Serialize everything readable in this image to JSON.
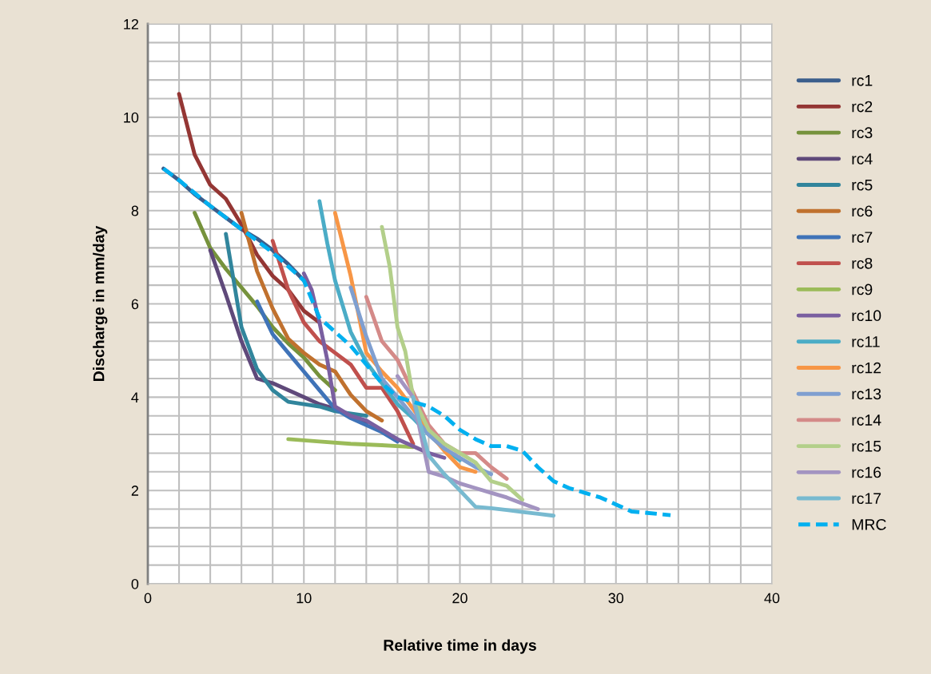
{
  "chart_data": {
    "type": "line",
    "xlabel": "Relative time in days",
    "ylabel": "Discharge in mm/day",
    "xlim": [
      0,
      40
    ],
    "ylim": [
      0,
      12
    ],
    "xticks": [
      0,
      {
        "value": 2,
        "label": null
      },
      {
        "value": 4,
        "label": null
      },
      {
        "value": 6,
        "label": null
      },
      {
        "value": 8,
        "label": null
      },
      10,
      {
        "value": 12,
        "label": null
      },
      {
        "value": 14,
        "label": null
      },
      {
        "value": 16,
        "label": null
      },
      {
        "value": 18,
        "label": null
      },
      20,
      {
        "value": 22,
        "label": null
      },
      {
        "value": 24,
        "label": null
      },
      {
        "value": 26,
        "label": null
      },
      {
        "value": 28,
        "label": null
      },
      30,
      {
        "value": 32,
        "label": null
      },
      {
        "value": 34,
        "label": null
      },
      {
        "value": 36,
        "label": null
      },
      {
        "value": 38,
        "label": null
      },
      40
    ],
    "yticks": [
      0,
      {
        "value": 0.4,
        "label": null
      },
      {
        "value": 0.8,
        "label": null
      },
      {
        "value": 1.2,
        "label": null
      },
      {
        "value": 1.6,
        "label": null
      },
      2,
      {
        "value": 2.4,
        "label": null
      },
      {
        "value": 2.8,
        "label": null
      },
      {
        "value": 3.2,
        "label": null
      },
      {
        "value": 3.6,
        "label": null
      },
      4,
      {
        "value": 4.4,
        "label": null
      },
      {
        "value": 4.8,
        "label": null
      },
      {
        "value": 5.2,
        "label": null
      },
      {
        "value": 5.6,
        "label": null
      },
      6,
      {
        "value": 6.4,
        "label": null
      },
      {
        "value": 6.8,
        "label": null
      },
      {
        "value": 7.2,
        "label": null
      },
      {
        "value": 7.6,
        "label": null
      },
      8,
      {
        "value": 8.4,
        "label": null
      },
      {
        "value": 8.8,
        "label": null
      },
      {
        "value": 9.2,
        "label": null
      },
      {
        "value": 9.6,
        "label": null
      },
      10,
      {
        "value": 10.4,
        "label": null
      },
      {
        "value": 10.8,
        "label": null
      },
      {
        "value": 11.2,
        "label": null
      },
      {
        "value": 11.6,
        "label": null
      },
      12
    ],
    "grid": true,
    "legend": "right",
    "marker": "none",
    "series": [
      {
        "name": "rc1",
        "color": "#3b5e8c",
        "x": [
          1,
          2,
          3,
          4,
          5,
          6,
          7,
          8,
          9,
          10
        ],
        "values": [
          8.9,
          8.65,
          8.35,
          8.1,
          7.85,
          7.6,
          7.4,
          7.15,
          6.85,
          6.5
        ]
      },
      {
        "name": "rc2",
        "color": "#943634",
        "x": [
          2,
          3,
          4,
          5,
          6,
          7,
          8,
          9,
          10,
          11
        ],
        "values": [
          10.5,
          9.2,
          8.55,
          8.25,
          7.7,
          7.05,
          6.6,
          6.3,
          5.85,
          5.6
        ]
      },
      {
        "name": "rc3",
        "color": "#76923c",
        "x": [
          3,
          4,
          5,
          6,
          7,
          8,
          9,
          10,
          11,
          12
        ],
        "values": [
          7.95,
          7.2,
          6.75,
          6.35,
          5.95,
          5.5,
          5.15,
          4.85,
          4.45,
          4.15
        ]
      },
      {
        "name": "rc4",
        "color": "#5f497a",
        "x": [
          4,
          5,
          6,
          7,
          8,
          9,
          10,
          11,
          12,
          13,
          14
        ],
        "values": [
          7.15,
          6.2,
          5.2,
          4.4,
          4.3,
          4.15,
          4.0,
          3.85,
          3.75,
          3.6,
          3.45
        ]
      },
      {
        "name": "rc5",
        "color": "#31859c",
        "x": [
          5,
          6,
          7,
          8,
          9,
          10,
          11,
          12,
          13,
          14
        ],
        "values": [
          7.5,
          5.5,
          4.6,
          4.15,
          3.9,
          3.85,
          3.8,
          3.7,
          3.65,
          3.6
        ]
      },
      {
        "name": "rc6",
        "color": "#c0712e",
        "x": [
          6,
          7,
          8,
          9,
          10,
          11,
          12,
          13,
          14,
          15
        ],
        "values": [
          7.95,
          6.7,
          5.9,
          5.25,
          4.95,
          4.7,
          4.55,
          4.05,
          3.7,
          3.5
        ]
      },
      {
        "name": "rc7",
        "color": "#3f73b8",
        "x": [
          7,
          8,
          9,
          10,
          11,
          12,
          13,
          14,
          15,
          16
        ],
        "values": [
          6.05,
          5.35,
          4.95,
          4.55,
          4.15,
          3.75,
          3.55,
          3.4,
          3.25,
          3.05
        ]
      },
      {
        "name": "rc8",
        "color": "#c0504d",
        "x": [
          8,
          9,
          10,
          11,
          12,
          13,
          14,
          15,
          16,
          17
        ],
        "values": [
          7.35,
          6.3,
          5.6,
          5.2,
          4.95,
          4.7,
          4.2,
          4.2,
          3.7,
          3.0
        ]
      },
      {
        "name": "rc9",
        "color": "#9bbb59",
        "x": [
          9,
          11,
          13,
          15,
          17
        ],
        "values": [
          3.1,
          3.05,
          3.0,
          2.97,
          2.93
        ]
      },
      {
        "name": "rc10",
        "color": "#7a5fa0",
        "x": [
          10,
          10.5,
          11,
          11.5,
          12,
          13,
          14,
          15,
          16,
          17,
          18,
          19
        ],
        "values": [
          6.65,
          6.3,
          5.6,
          4.8,
          3.8,
          3.6,
          3.5,
          3.3,
          3.1,
          2.95,
          2.8,
          2.7
        ]
      },
      {
        "name": "rc11",
        "color": "#4bacc6",
        "x": [
          11,
          11.5,
          12,
          13,
          14,
          15,
          16,
          17,
          18,
          19,
          20
        ],
        "values": [
          8.2,
          7.3,
          6.5,
          5.4,
          4.75,
          4.3,
          3.85,
          3.55,
          3.2,
          2.9,
          2.65
        ]
      },
      {
        "name": "rc12",
        "color": "#f79646",
        "x": [
          12,
          13,
          14,
          15,
          16,
          17,
          18,
          19,
          20,
          21
        ],
        "values": [
          7.95,
          6.6,
          4.95,
          4.55,
          4.2,
          3.75,
          3.25,
          2.85,
          2.5,
          2.4
        ]
      },
      {
        "name": "rc13",
        "color": "#7f9fd0",
        "x": [
          13,
          14,
          15,
          16,
          17,
          18,
          19,
          20,
          21,
          22
        ],
        "values": [
          6.35,
          5.3,
          4.4,
          4.0,
          3.6,
          3.2,
          2.9,
          2.7,
          2.5,
          2.35
        ]
      },
      {
        "name": "rc14",
        "color": "#d48a88",
        "x": [
          14,
          15,
          16,
          17,
          18,
          19,
          20,
          21,
          22,
          23
        ],
        "values": [
          6.15,
          5.2,
          4.8,
          4.1,
          3.4,
          3.0,
          2.8,
          2.8,
          2.5,
          2.25
        ]
      },
      {
        "name": "rc15",
        "color": "#b3cf8a",
        "x": [
          15,
          15.5,
          16,
          16.5,
          17,
          18,
          19,
          20,
          21,
          22,
          23,
          24
        ],
        "values": [
          7.65,
          6.8,
          5.5,
          4.98,
          4.0,
          3.3,
          3.0,
          2.8,
          2.6,
          2.2,
          2.1,
          1.8
        ]
      },
      {
        "name": "rc16",
        "color": "#a394c1",
        "x": [
          16,
          17,
          17.5,
          18,
          19,
          20,
          21,
          22,
          23,
          24,
          25
        ],
        "values": [
          4.45,
          4.0,
          3.2,
          2.4,
          2.3,
          2.15,
          2.05,
          1.95,
          1.85,
          1.72,
          1.6
        ]
      },
      {
        "name": "rc17",
        "color": "#78bad0",
        "x": [
          17,
          18,
          19,
          20,
          21,
          22,
          23,
          24,
          25,
          26
        ],
        "values": [
          4.0,
          2.75,
          2.35,
          2.0,
          1.65,
          1.62,
          1.58,
          1.54,
          1.5,
          1.46
        ]
      },
      {
        "name": "MRC",
        "color": "#00b0f0",
        "line_style": "dashed",
        "x": [
          1,
          2,
          4,
          6,
          8,
          10,
          11,
          12,
          13,
          14,
          15,
          16,
          17,
          18,
          19,
          20,
          21,
          22,
          23,
          24,
          25,
          26,
          27,
          28,
          29,
          30,
          31,
          32,
          33.5
        ],
        "values": [
          8.9,
          8.65,
          8.1,
          7.6,
          7.1,
          6.5,
          5.7,
          5.4,
          5.1,
          4.7,
          4.3,
          4.0,
          3.9,
          3.8,
          3.6,
          3.3,
          3.1,
          2.95,
          2.95,
          2.85,
          2.5,
          2.2,
          2.05,
          1.95,
          1.85,
          1.7,
          1.55,
          1.52,
          1.47
        ]
      }
    ]
  }
}
